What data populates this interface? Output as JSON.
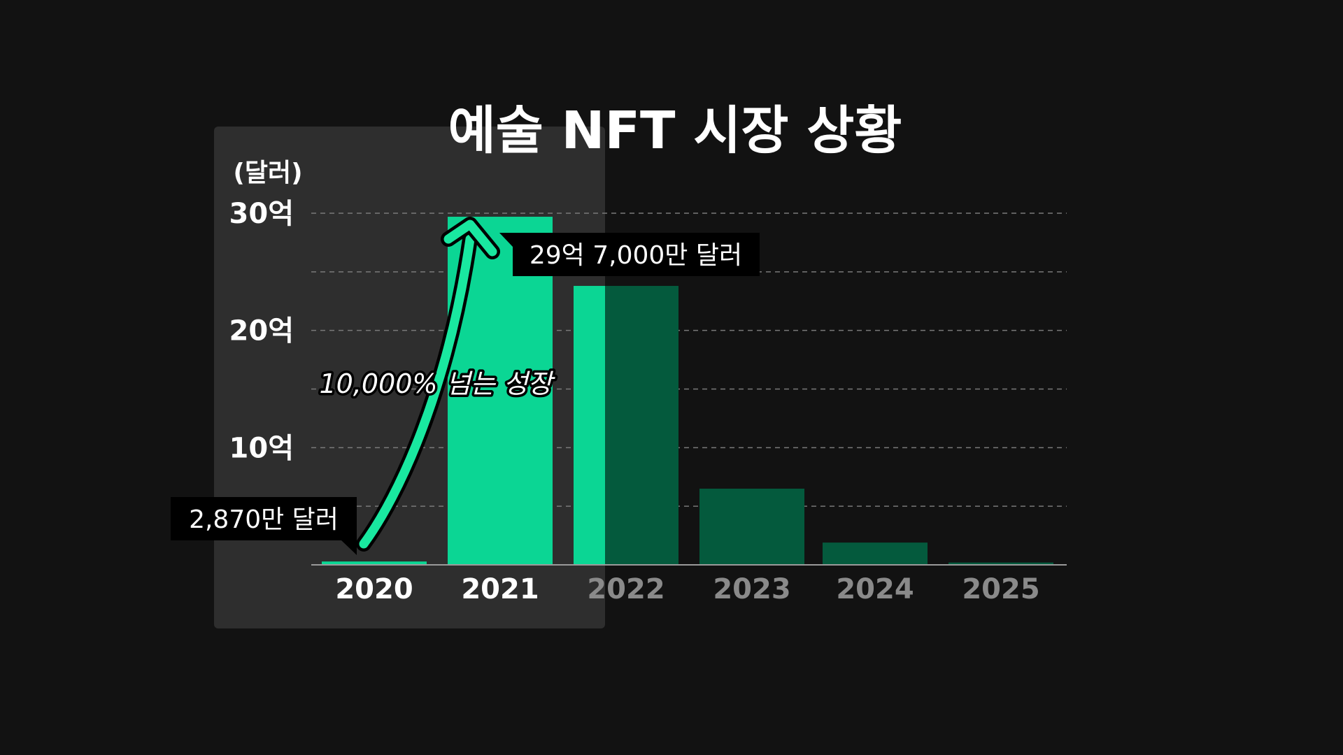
{
  "chart_data": {
    "type": "bar",
    "title": "예술 NFT 시장 상황",
    "ylabel": "(달러)",
    "xlabel": "",
    "categories": [
      "2020",
      "2021",
      "2022",
      "2023",
      "2024",
      "2025"
    ],
    "values": [
      28700000,
      2970000000,
      2380000000,
      650000000,
      190000000,
      20000000
    ],
    "ylim": [
      0,
      3000000000
    ],
    "yticks": [
      {
        "value": 1000000000,
        "label": "10억"
      },
      {
        "value": 2000000000,
        "label": "20억"
      },
      {
        "value": 3000000000,
        "label": "30억"
      }
    ],
    "grid": true,
    "highlighted_categories": [
      "2020",
      "2021"
    ],
    "annotations": {
      "label_2020": "2,870만 달러",
      "label_2021": "29억 7,000만 달러",
      "growth": "10,000% 넘는 성장"
    },
    "colors": {
      "background": "#121212",
      "highlight_panel": "#2e2e2e",
      "bar_bright": "#0bd694",
      "bar_dark": "#045a3d",
      "arrow": "#19e8a0",
      "label_bg": "#000000",
      "tick_bright": "#ffffff",
      "tick_dim": "#8a8a8a",
      "grid": "#7a7a7a"
    }
  }
}
